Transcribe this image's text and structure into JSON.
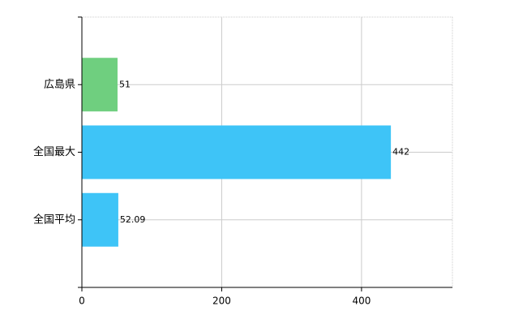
{
  "chart_data": {
    "type": "bar",
    "orientation": "horizontal",
    "categories": [
      "広島県",
      "全国最大",
      "全国平均"
    ],
    "values": [
      51,
      442,
      52.09
    ],
    "colors": [
      "#6fcf7f",
      "#3ec4f7",
      "#3ec4f7"
    ],
    "xlim": [
      0,
      530
    ],
    "xticks": [
      0,
      200,
      400
    ],
    "grid": true
  }
}
